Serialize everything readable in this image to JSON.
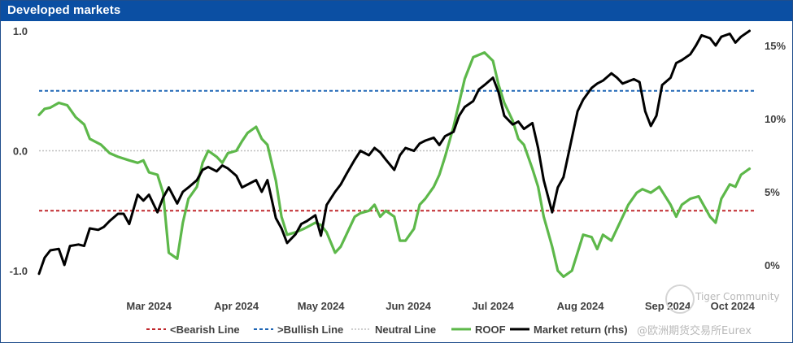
{
  "title": "Developed markets",
  "chart_data": {
    "type": "line",
    "title": "Developed markets",
    "x_ticks": [
      "Mar 2024",
      "Apr 2024",
      "May 2024",
      "Jun 2024",
      "Jul 2024",
      "Aug 2024",
      "Sep 2024",
      "Oct 2024"
    ],
    "x_range": [
      "2024-02-05",
      "2024-10-15"
    ],
    "y_left": {
      "lim": [
        -1.0,
        1.0
      ],
      "ticks": [
        "1.0",
        "0.0",
        "-1.0"
      ]
    },
    "y_right": {
      "lim": [
        0,
        16
      ],
      "ticks": [
        "15%",
        "10%",
        "5%",
        "0%"
      ]
    },
    "hlines": [
      {
        "name": "<Bearish Line",
        "value": -0.5,
        "color": "#c0282d",
        "style": "dashed"
      },
      {
        "name": ">Bullish Line",
        "value": 0.5,
        "color": "#1f66b5",
        "style": "dashed"
      },
      {
        "name": "Neutral Line",
        "value": 0.0,
        "color": "#bfbfbf",
        "style": "dotted"
      }
    ],
    "series": [
      {
        "name": "ROOF",
        "axis": "left",
        "color": "#5db84a",
        "points": [
          [
            "2024-02-05",
            0.3
          ],
          [
            "2024-02-07",
            0.35
          ],
          [
            "2024-02-09",
            0.36
          ],
          [
            "2024-02-12",
            0.4
          ],
          [
            "2024-02-15",
            0.38
          ],
          [
            "2024-02-18",
            0.28
          ],
          [
            "2024-02-21",
            0.22
          ],
          [
            "2024-02-23",
            0.1
          ],
          [
            "2024-02-27",
            0.05
          ],
          [
            "2024-03-01",
            -0.02
          ],
          [
            "2024-03-04",
            -0.05
          ],
          [
            "2024-03-08",
            -0.08
          ],
          [
            "2024-03-11",
            -0.1
          ],
          [
            "2024-03-13",
            -0.08
          ],
          [
            "2024-03-15",
            -0.18
          ],
          [
            "2024-03-18",
            -0.2
          ],
          [
            "2024-03-20",
            -0.35
          ],
          [
            "2024-03-22",
            -0.85
          ],
          [
            "2024-03-25",
            -0.9
          ],
          [
            "2024-03-27",
            -0.6
          ],
          [
            "2024-03-29",
            -0.4
          ],
          [
            "2024-04-01",
            -0.3
          ],
          [
            "2024-04-03",
            -0.1
          ],
          [
            "2024-04-05",
            0.0
          ],
          [
            "2024-04-08",
            -0.05
          ],
          [
            "2024-04-10",
            -0.1
          ],
          [
            "2024-04-12",
            -0.02
          ],
          [
            "2024-04-15",
            0.0
          ],
          [
            "2024-04-17",
            0.08
          ],
          [
            "2024-04-19",
            0.15
          ],
          [
            "2024-04-22",
            0.2
          ],
          [
            "2024-04-24",
            0.1
          ],
          [
            "2024-04-26",
            0.05
          ],
          [
            "2024-04-29",
            -0.25
          ],
          [
            "2024-05-01",
            -0.55
          ],
          [
            "2024-05-03",
            -0.7
          ],
          [
            "2024-05-06",
            -0.68
          ],
          [
            "2024-05-09",
            -0.65
          ],
          [
            "2024-05-13",
            -0.6
          ],
          [
            "2024-05-15",
            -0.62
          ],
          [
            "2024-05-17",
            -0.68
          ],
          [
            "2024-05-20",
            -0.85
          ],
          [
            "2024-05-22",
            -0.8
          ],
          [
            "2024-05-24",
            -0.7
          ],
          [
            "2024-05-27",
            -0.55
          ],
          [
            "2024-05-29",
            -0.52
          ],
          [
            "2024-06-01",
            -0.5
          ],
          [
            "2024-06-03",
            -0.45
          ],
          [
            "2024-06-05",
            -0.55
          ],
          [
            "2024-06-07",
            -0.5
          ],
          [
            "2024-06-10",
            -0.55
          ],
          [
            "2024-06-12",
            -0.75
          ],
          [
            "2024-06-14",
            -0.75
          ],
          [
            "2024-06-17",
            -0.65
          ],
          [
            "2024-06-19",
            -0.45
          ],
          [
            "2024-06-21",
            -0.4
          ],
          [
            "2024-06-24",
            -0.3
          ],
          [
            "2024-06-26",
            -0.2
          ],
          [
            "2024-06-28",
            -0.05
          ],
          [
            "2024-07-01",
            0.2
          ],
          [
            "2024-07-03",
            0.4
          ],
          [
            "2024-07-05",
            0.6
          ],
          [
            "2024-07-08",
            0.78
          ],
          [
            "2024-07-10",
            0.8
          ],
          [
            "2024-07-12",
            0.82
          ],
          [
            "2024-07-15",
            0.75
          ],
          [
            "2024-07-17",
            0.55
          ],
          [
            "2024-07-19",
            0.4
          ],
          [
            "2024-07-22",
            0.25
          ],
          [
            "2024-07-24",
            0.1
          ],
          [
            "2024-07-26",
            0.05
          ],
          [
            "2024-07-29",
            -0.15
          ],
          [
            "2024-07-31",
            -0.3
          ],
          [
            "2024-08-02",
            -0.55
          ],
          [
            "2024-08-05",
            -0.8
          ],
          [
            "2024-08-07",
            -1.0
          ],
          [
            "2024-08-09",
            -1.05
          ],
          [
            "2024-08-12",
            -1.0
          ],
          [
            "2024-08-14",
            -0.85
          ],
          [
            "2024-08-16",
            -0.7
          ],
          [
            "2024-08-19",
            -0.72
          ],
          [
            "2024-08-21",
            -0.82
          ],
          [
            "2024-08-23",
            -0.7
          ],
          [
            "2024-08-26",
            -0.75
          ],
          [
            "2024-08-29",
            -0.6
          ],
          [
            "2024-09-01",
            -0.45
          ],
          [
            "2024-09-04",
            -0.35
          ],
          [
            "2024-09-06",
            -0.32
          ],
          [
            "2024-09-09",
            -0.35
          ],
          [
            "2024-09-12",
            -0.3
          ],
          [
            "2024-09-16",
            -0.45
          ],
          [
            "2024-09-18",
            -0.55
          ],
          [
            "2024-09-20",
            -0.45
          ],
          [
            "2024-09-23",
            -0.4
          ],
          [
            "2024-09-26",
            -0.38
          ],
          [
            "2024-09-30",
            -0.55
          ],
          [
            "2024-10-02",
            -0.6
          ],
          [
            "2024-10-04",
            -0.4
          ],
          [
            "2024-10-07",
            -0.28
          ],
          [
            "2024-10-09",
            -0.3
          ],
          [
            "2024-10-11",
            -0.2
          ],
          [
            "2024-10-14",
            -0.15
          ]
        ]
      },
      {
        "name": "Market return (rhs)",
        "axis": "right",
        "color": "#000000",
        "points": [
          [
            "2024-02-05",
            -0.6
          ],
          [
            "2024-02-07",
            0.5
          ],
          [
            "2024-02-09",
            1.0
          ],
          [
            "2024-02-12",
            1.1
          ],
          [
            "2024-02-14",
            0.0
          ],
          [
            "2024-02-16",
            1.3
          ],
          [
            "2024-02-19",
            1.4
          ],
          [
            "2024-02-21",
            1.3
          ],
          [
            "2024-02-23",
            2.5
          ],
          [
            "2024-02-26",
            2.4
          ],
          [
            "2024-02-28",
            2.6
          ],
          [
            "2024-03-01",
            3.0
          ],
          [
            "2024-03-04",
            3.5
          ],
          [
            "2024-03-06",
            3.5
          ],
          [
            "2024-03-08",
            2.8
          ],
          [
            "2024-03-11",
            4.8
          ],
          [
            "2024-03-13",
            4.4
          ],
          [
            "2024-03-15",
            4.8
          ],
          [
            "2024-03-18",
            3.6
          ],
          [
            "2024-03-20",
            4.6
          ],
          [
            "2024-03-22",
            5.3
          ],
          [
            "2024-03-25",
            4.2
          ],
          [
            "2024-03-27",
            5.0
          ],
          [
            "2024-03-29",
            5.3
          ],
          [
            "2024-04-01",
            5.8
          ],
          [
            "2024-04-03",
            6.5
          ],
          [
            "2024-04-05",
            6.7
          ],
          [
            "2024-04-08",
            6.4
          ],
          [
            "2024-04-10",
            6.8
          ],
          [
            "2024-04-12",
            6.6
          ],
          [
            "2024-04-15",
            6.1
          ],
          [
            "2024-04-17",
            5.3
          ],
          [
            "2024-04-19",
            5.5
          ],
          [
            "2024-04-22",
            5.8
          ],
          [
            "2024-04-24",
            5.0
          ],
          [
            "2024-04-26",
            5.8
          ],
          [
            "2024-04-29",
            3.2
          ],
          [
            "2024-05-01",
            2.5
          ],
          [
            "2024-05-03",
            1.5
          ],
          [
            "2024-05-06",
            2.1
          ],
          [
            "2024-05-08",
            2.8
          ],
          [
            "2024-05-10",
            3.0
          ],
          [
            "2024-05-13",
            3.4
          ],
          [
            "2024-05-15",
            2.0
          ],
          [
            "2024-05-17",
            4.1
          ],
          [
            "2024-05-20",
            5.0
          ],
          [
            "2024-05-22",
            5.5
          ],
          [
            "2024-05-24",
            6.2
          ],
          [
            "2024-05-27",
            7.2
          ],
          [
            "2024-05-29",
            7.8
          ],
          [
            "2024-06-01",
            7.5
          ],
          [
            "2024-06-03",
            8.0
          ],
          [
            "2024-06-05",
            7.7
          ],
          [
            "2024-06-07",
            7.2
          ],
          [
            "2024-06-10",
            6.5
          ],
          [
            "2024-06-12",
            7.5
          ],
          [
            "2024-06-14",
            8.0
          ],
          [
            "2024-06-17",
            7.8
          ],
          [
            "2024-06-19",
            8.3
          ],
          [
            "2024-06-21",
            8.5
          ],
          [
            "2024-06-24",
            8.7
          ],
          [
            "2024-06-26",
            8.2
          ],
          [
            "2024-06-28",
            8.8
          ],
          [
            "2024-07-01",
            9.1
          ],
          [
            "2024-07-03",
            10.2
          ],
          [
            "2024-07-05",
            10.8
          ],
          [
            "2024-07-08",
            11.2
          ],
          [
            "2024-07-10",
            12.0
          ],
          [
            "2024-07-12",
            12.3
          ],
          [
            "2024-07-15",
            12.8
          ],
          [
            "2024-07-17",
            11.8
          ],
          [
            "2024-07-19",
            10.2
          ],
          [
            "2024-07-22",
            9.6
          ],
          [
            "2024-07-24",
            9.8
          ],
          [
            "2024-07-26",
            9.3
          ],
          [
            "2024-07-29",
            9.7
          ],
          [
            "2024-07-31",
            8.0
          ],
          [
            "2024-08-02",
            5.8
          ],
          [
            "2024-08-05",
            3.6
          ],
          [
            "2024-08-07",
            5.3
          ],
          [
            "2024-08-09",
            6.0
          ],
          [
            "2024-08-12",
            8.7
          ],
          [
            "2024-08-14",
            10.5
          ],
          [
            "2024-08-16",
            11.3
          ],
          [
            "2024-08-19",
            12.1
          ],
          [
            "2024-08-21",
            12.4
          ],
          [
            "2024-08-23",
            12.6
          ],
          [
            "2024-08-26",
            13.1
          ],
          [
            "2024-08-28",
            12.8
          ],
          [
            "2024-08-30",
            12.4
          ],
          [
            "2024-09-03",
            12.7
          ],
          [
            "2024-09-05",
            12.5
          ],
          [
            "2024-09-07",
            10.5
          ],
          [
            "2024-09-09",
            9.5
          ],
          [
            "2024-09-11",
            10.2
          ],
          [
            "2024-09-13",
            12.3
          ],
          [
            "2024-09-16",
            12.8
          ],
          [
            "2024-09-18",
            13.8
          ],
          [
            "2024-09-20",
            14.0
          ],
          [
            "2024-09-23",
            14.4
          ],
          [
            "2024-09-25",
            15.0
          ],
          [
            "2024-09-27",
            15.7
          ],
          [
            "2024-09-30",
            15.5
          ],
          [
            "2024-10-02",
            15.0
          ],
          [
            "2024-10-04",
            15.6
          ],
          [
            "2024-10-07",
            15.8
          ],
          [
            "2024-10-09",
            15.2
          ],
          [
            "2024-10-11",
            15.6
          ],
          [
            "2024-10-14",
            16.0
          ]
        ]
      }
    ],
    "legend": [
      "<Bearish Line",
      ">Bullish Line",
      "Neutral Line",
      "ROOF",
      "Market return (rhs)"
    ],
    "legend_position": "bottom",
    "grid": false
  },
  "watermark": {
    "brand": "Tiger Community",
    "handle": "@欧洲期货交易所Eurex"
  }
}
